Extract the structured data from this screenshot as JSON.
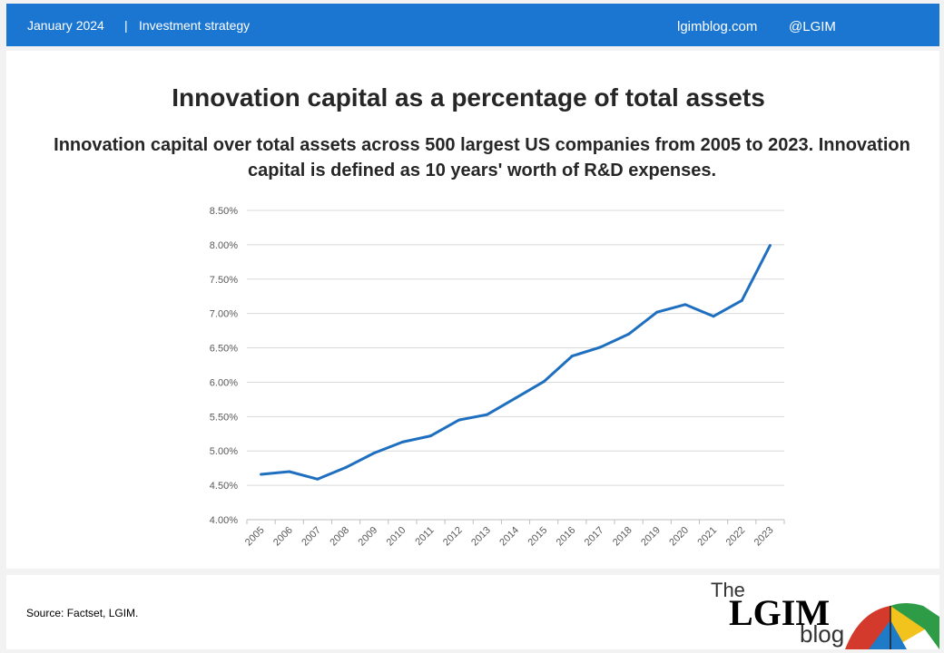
{
  "header": {
    "date": "January 2024",
    "separator": "|",
    "topic": "Investment strategy",
    "site": "lgimblog.com",
    "handle": "@LGIM"
  },
  "colors": {
    "header_bg": "#1b76d2",
    "line": "#1f6fc0",
    "grid": "#d9d9d9"
  },
  "chart_data": {
    "type": "line",
    "title": "Innovation capital as a percentage of total assets",
    "subtitle": "Innovation capital over total assets across 500 largest US companies from 2005 to 2023. Innovation capital is defined as 10 years' worth of R&D expenses.",
    "x": [
      "2005",
      "2006",
      "2007",
      "2008",
      "2009",
      "2010",
      "2011",
      "2012",
      "2013",
      "2014",
      "2015",
      "2016",
      "2017",
      "2018",
      "2019",
      "2020",
      "2021",
      "2022",
      "2023"
    ],
    "values": [
      4.66,
      4.7,
      4.59,
      4.76,
      4.97,
      5.13,
      5.22,
      5.45,
      5.53,
      5.77,
      6.01,
      6.38,
      6.51,
      6.7,
      7.02,
      7.13,
      6.96,
      7.19,
      7.99
    ],
    "ylim": [
      4.0,
      8.5
    ],
    "yticks": [
      "4.00%",
      "4.50%",
      "5.00%",
      "5.50%",
      "6.00%",
      "6.50%",
      "7.00%",
      "7.50%",
      "8.00%",
      "8.50%"
    ],
    "ytick_values": [
      4.0,
      4.5,
      5.0,
      5.5,
      6.0,
      6.5,
      7.0,
      7.5,
      8.0,
      8.5
    ],
    "xlabel": "",
    "ylabel": "",
    "grid": true,
    "legend": "none"
  },
  "footer": {
    "source": "Source: Factset, LGIM.",
    "logo_the": "The",
    "logo_lgim": "LGIM",
    "logo_blog": "blog"
  }
}
